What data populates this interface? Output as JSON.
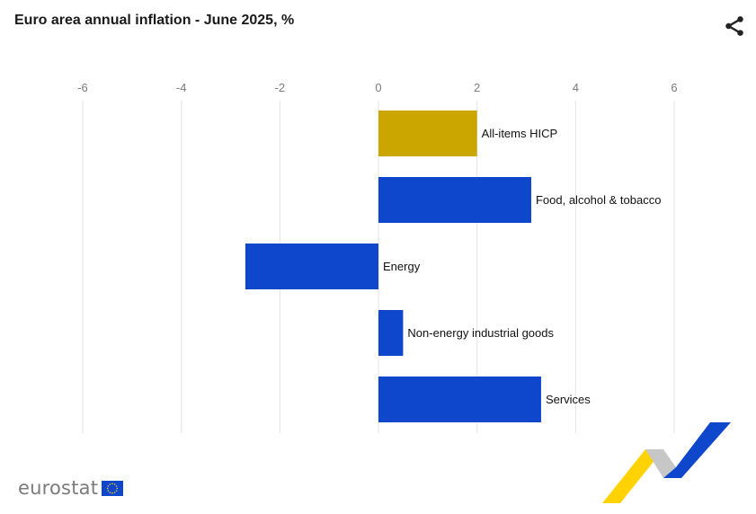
{
  "header": {
    "title": "Euro area annual inflation - June 2025, %"
  },
  "icons": {
    "share": "share-icon"
  },
  "branding": {
    "logo_text": "eurostat",
    "flag": "eu-flag-icon"
  },
  "colors": {
    "highlight": "#cca600",
    "bar": "#0e47cb",
    "grid": "#e3e3e3",
    "tick": "#7a7a7a"
  },
  "chart_data": {
    "type": "bar",
    "orientation": "horizontal",
    "title": "Euro area annual inflation - June 2025, %",
    "categories": [
      "All-items HICP",
      "Food, alcohol & tobacco",
      "Energy",
      "Non-energy industrial goods",
      "Services"
    ],
    "values": [
      2.0,
      3.1,
      -2.7,
      0.5,
      3.3
    ],
    "highlight_index": 0,
    "xlim": [
      -6,
      6
    ],
    "xticks": [
      -6,
      -4,
      -2,
      0,
      2,
      4,
      6
    ],
    "grid": true,
    "axis_position": "top"
  }
}
